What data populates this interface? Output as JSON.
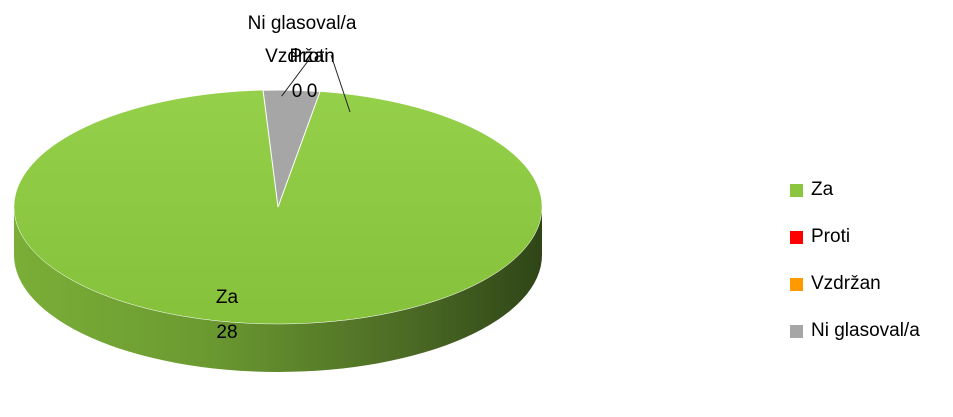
{
  "chart_data": {
    "type": "pie",
    "title": "",
    "series": [
      {
        "name": "",
        "values": [
          28,
          0,
          0,
          1
        ]
      }
    ],
    "categories": [
      "Za",
      "Proti",
      "Vzdržan",
      "Ni glasoval/a"
    ],
    "values": [
      28,
      0,
      0,
      1
    ],
    "colors": [
      "#8cc63f",
      "#ff0000",
      "#ff9900",
      "#a6a6a6"
    ],
    "data_labels": [
      {
        "category": "Za",
        "value": "28"
      },
      {
        "category": "Proti",
        "value": "0"
      },
      {
        "category": "Vzdržan",
        "value": "0"
      },
      {
        "category": "Ni glasoval/a",
        "value": ""
      }
    ],
    "legend": {
      "placement": "right",
      "items": [
        {
          "label": "Za",
          "color": "#8cc63f"
        },
        {
          "label": "Proti",
          "color": "#ff0000"
        },
        {
          "label": "Vzdržan",
          "color": "#ff9900"
        },
        {
          "label": "Ni glasoval/a",
          "color": "#a6a6a6"
        }
      ]
    }
  }
}
